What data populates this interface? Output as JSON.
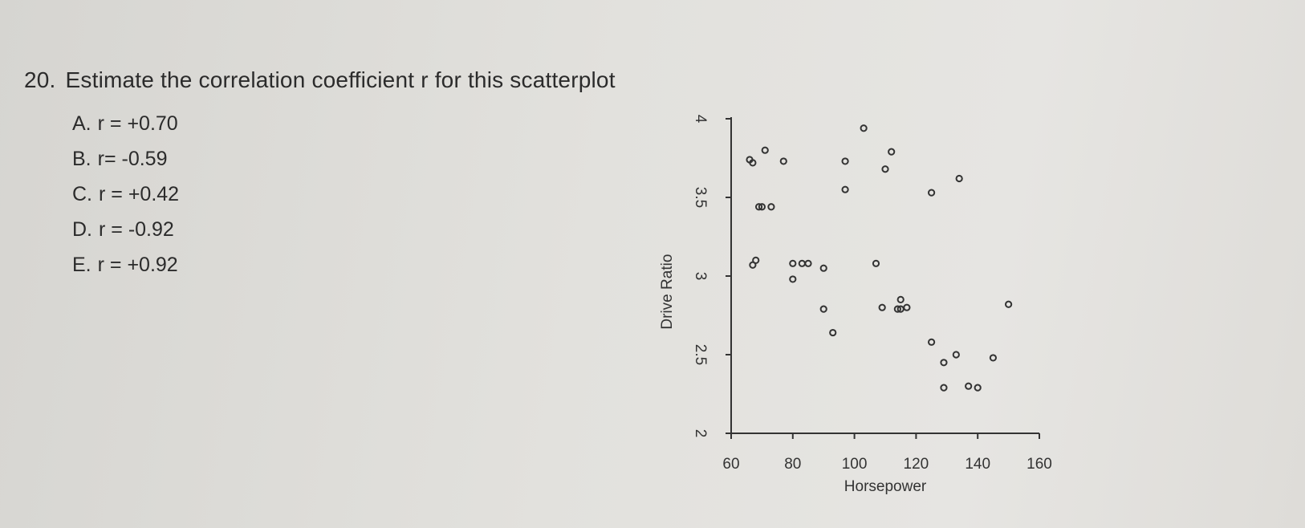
{
  "question": {
    "number": "20.",
    "text": "Estimate the correlation coefficient r for this scatterplot",
    "options": [
      {
        "letter": "A.",
        "text": "r = +0.70"
      },
      {
        "letter": "B.",
        "text": "r= -0.59"
      },
      {
        "letter": "C.",
        "text": "r = +0.42"
      },
      {
        "letter": "D.",
        "text": "r = -0.92"
      },
      {
        "letter": "E.",
        "text": "r = +0.92"
      }
    ]
  },
  "chart_data": {
    "type": "scatter",
    "title": "",
    "xlabel": "Horsepower",
    "ylabel": "Drive Ratio",
    "xlim": [
      60,
      160
    ],
    "ylim": [
      2,
      4
    ],
    "xticks": [
      "60",
      "80",
      "100",
      "120",
      "140",
      "160"
    ],
    "yticks": [
      "2",
      "2.5",
      "3",
      "3.5",
      "4"
    ],
    "grid": false,
    "legend": "none",
    "point_color": "#333333",
    "x": [
      66,
      67,
      71,
      69,
      70,
      73,
      67,
      68,
      77,
      80,
      80,
      83,
      85,
      90,
      90,
      93,
      97,
      97,
      103,
      107,
      109,
      110,
      114,
      115,
      115,
      112,
      117,
      125,
      125,
      129,
      129,
      133,
      134,
      137,
      140,
      145,
      150
    ],
    "y": [
      3.74,
      3.72,
      3.8,
      3.44,
      3.44,
      3.44,
      3.07,
      3.1,
      3.73,
      3.08,
      2.98,
      3.08,
      3.08,
      3.05,
      2.79,
      2.64,
      3.73,
      3.55,
      3.94,
      3.08,
      2.8,
      3.68,
      2.79,
      2.85,
      2.79,
      3.79,
      2.8,
      3.53,
      2.58,
      2.45,
      2.29,
      2.5,
      3.62,
      2.3,
      2.29,
      2.48,
      2.82
    ]
  }
}
